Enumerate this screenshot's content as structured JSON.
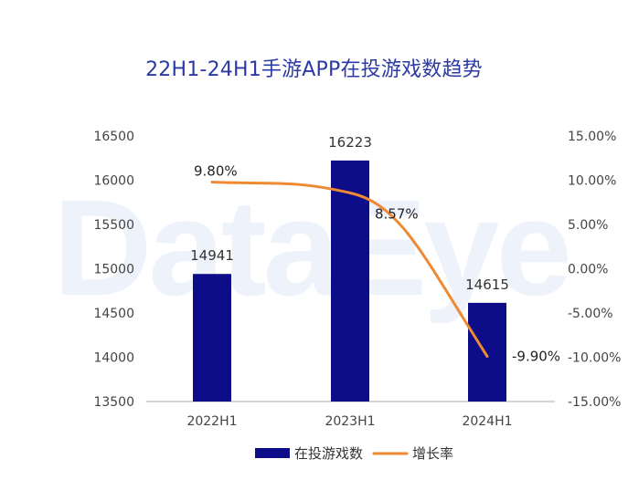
{
  "watermark": "DataEye",
  "chart_data": {
    "type": "bar",
    "title": "22H1-24H1手游APP在投游戏数趋势",
    "categories": [
      "2022H1",
      "2023H1",
      "2024H1"
    ],
    "series": [
      {
        "name": "在投游戏数",
        "type": "bar",
        "axis": "left",
        "values": [
          14941,
          16223,
          14615
        ],
        "labels": [
          "14941",
          "16223",
          "14615"
        ],
        "color": "#0d0d8a"
      },
      {
        "name": "增长率",
        "type": "line",
        "axis": "right",
        "values": [
          9.8,
          8.57,
          -9.9
        ],
        "labels": [
          "9.80%",
          "8.57%",
          "-9.90%"
        ],
        "color": "#ef8a32"
      }
    ],
    "y_left": {
      "min": 13500,
      "max": 16500,
      "ticks": [
        "13500",
        "14000",
        "14500",
        "15000",
        "15500",
        "16000",
        "16500"
      ]
    },
    "y_right": {
      "min": -15,
      "max": 15,
      "ticks": [
        "-15.00%",
        "-10.00%",
        "-5.00%",
        "0.00%",
        "5.00%",
        "10.00%",
        "15.00%"
      ]
    },
    "legend_position": "bottom",
    "grid": false
  }
}
